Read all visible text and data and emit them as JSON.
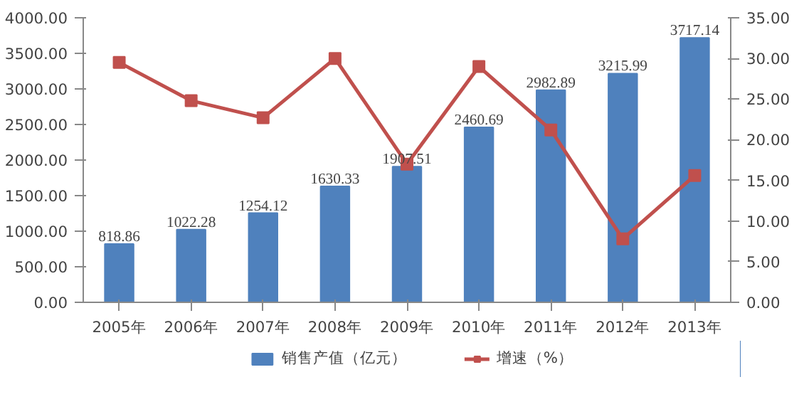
{
  "chart_data": {
    "type": "bar",
    "categories": [
      "2005年",
      "2006年",
      "2007年",
      "2008年",
      "2009年",
      "2010年",
      "2011年",
      "2012年",
      "2013年"
    ],
    "series": [
      {
        "name": "销售产值（亿元）",
        "color": "#4f81bd",
        "values": [
          818.86,
          1022.28,
          1254.12,
          1630.33,
          1907.51,
          2460.69,
          2982.89,
          3215.99,
          3717.14
        ],
        "value_labels": [
          "818.86",
          "1022.28",
          "1254.12",
          "1630.33",
          "1907.51",
          "2460.69",
          "2982.89",
          "3215.99",
          "3717.14"
        ]
      },
      {
        "name": "增速（%）",
        "type": "line",
        "axis": "y2",
        "color": "#c0504d",
        "marker": "square",
        "values": [
          29.5,
          24.8,
          22.7,
          30.0,
          17.0,
          29.0,
          21.2,
          7.8,
          15.6
        ]
      }
    ],
    "ylim": [
      0,
      4000
    ],
    "yticks": [
      {
        "value": 0,
        "label": "0.00"
      },
      {
        "value": 500,
        "label": "500.00"
      },
      {
        "value": 1000,
        "label": "1000.00"
      },
      {
        "value": 1500,
        "label": "1500.00"
      },
      {
        "value": 2000,
        "label": "2000.00"
      },
      {
        "value": 2500,
        "label": "2500.00"
      },
      {
        "value": 3000,
        "label": "3000.00"
      },
      {
        "value": 3500,
        "label": "3500.00"
      },
      {
        "value": 4000,
        "label": "4000.00"
      }
    ],
    "y2lim": [
      0,
      35
    ],
    "y2ticks": [
      {
        "value": 0,
        "label": "0.00"
      },
      {
        "value": 5,
        "label": "5.00"
      },
      {
        "value": 10,
        "label": "10.00"
      },
      {
        "value": 15,
        "label": "15.00"
      },
      {
        "value": 20,
        "label": "20.00"
      },
      {
        "value": 25,
        "label": "25.00"
      },
      {
        "value": 30,
        "label": "30.00"
      },
      {
        "value": 35,
        "label": "35.00"
      }
    ],
    "grid": false,
    "legend": "bottom"
  }
}
